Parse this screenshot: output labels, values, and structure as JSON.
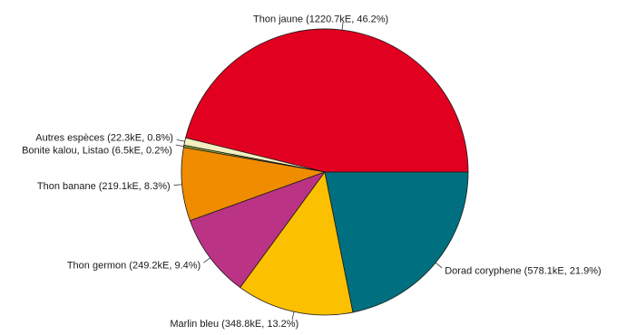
{
  "chart_data": {
    "type": "pie",
    "title": "",
    "unit": "kE",
    "slices": [
      {
        "name": "Thon jaune",
        "value": 1220.7,
        "percent": 46.2,
        "color": "#e1001f",
        "label": "Thon jaune (1220.7kE, 46.2%)"
      },
      {
        "name": "Autres espèces",
        "value": 22.3,
        "percent": 0.8,
        "color": "#f4efc1",
        "label": "Autres espèces (22.3kE, 0.8%)"
      },
      {
        "name": "Bonite kalou, Listao",
        "value": 6.5,
        "percent": 0.2,
        "color": "#8aa63a",
        "label": "Bonite kalou, Listao (6.5kE, 0.2%)"
      },
      {
        "name": "Thon banane",
        "value": 219.1,
        "percent": 8.3,
        "color": "#f08c00",
        "label": "Thon banane (219.1kE, 8.3%)"
      },
      {
        "name": "Thon germon",
        "value": 249.2,
        "percent": 9.4,
        "color": "#bb3385",
        "label": "Thon germon (249.2kE, 9.4%)"
      },
      {
        "name": "Marlin bleu",
        "value": 348.8,
        "percent": 13.2,
        "color": "#fbc000",
        "label": "Marlin bleu (348.8kE, 13.2%)"
      },
      {
        "name": "Dorad coryphene",
        "value": 578.1,
        "percent": 21.9,
        "color": "#006f7f",
        "label": "Dorad coryphene (578.1kE, 21.9%)"
      }
    ]
  }
}
